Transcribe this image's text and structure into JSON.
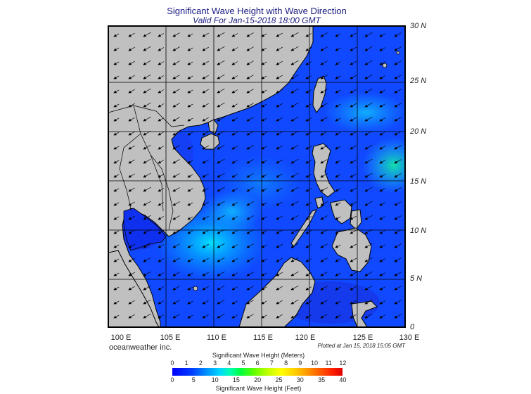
{
  "header": {
    "title": "Significant Wave Height with Wave Direction",
    "subtitle": "Valid For Jan-15-2018 18:00 GMT"
  },
  "map": {
    "region": "South China Sea / Philippines",
    "lat_labels": [
      "30 N",
      "25 N",
      "20 N",
      "15 N",
      "10 N",
      "5 N",
      "0"
    ],
    "lon_labels": [
      "100 E",
      "105 E",
      "110 E",
      "115 E",
      "120 E",
      "125 E",
      "130 E"
    ],
    "colors": {
      "land": "#c0c0c0",
      "coast": "#000000",
      "ocean_low": "#0020ff",
      "ocean_high": "#00e0ff"
    },
    "wave_direction": "toward southwest"
  },
  "footer": {
    "credit": "oceanweather inc.",
    "plotted": "Plotted at Jan 15, 2018 15:05 GMT"
  },
  "legend": {
    "title_meters": "Significant Wave Height (Meters)",
    "title_feet": "Significant Wave Height (Feet)",
    "meters_ticks": [
      "0",
      "1",
      "2",
      "3",
      "4",
      "5",
      "6",
      "7",
      "8",
      "9",
      "10",
      "11",
      "12"
    ],
    "feet_ticks": [
      "0",
      "5",
      "10",
      "15",
      "20",
      "25",
      "30",
      "35",
      "40"
    ]
  }
}
